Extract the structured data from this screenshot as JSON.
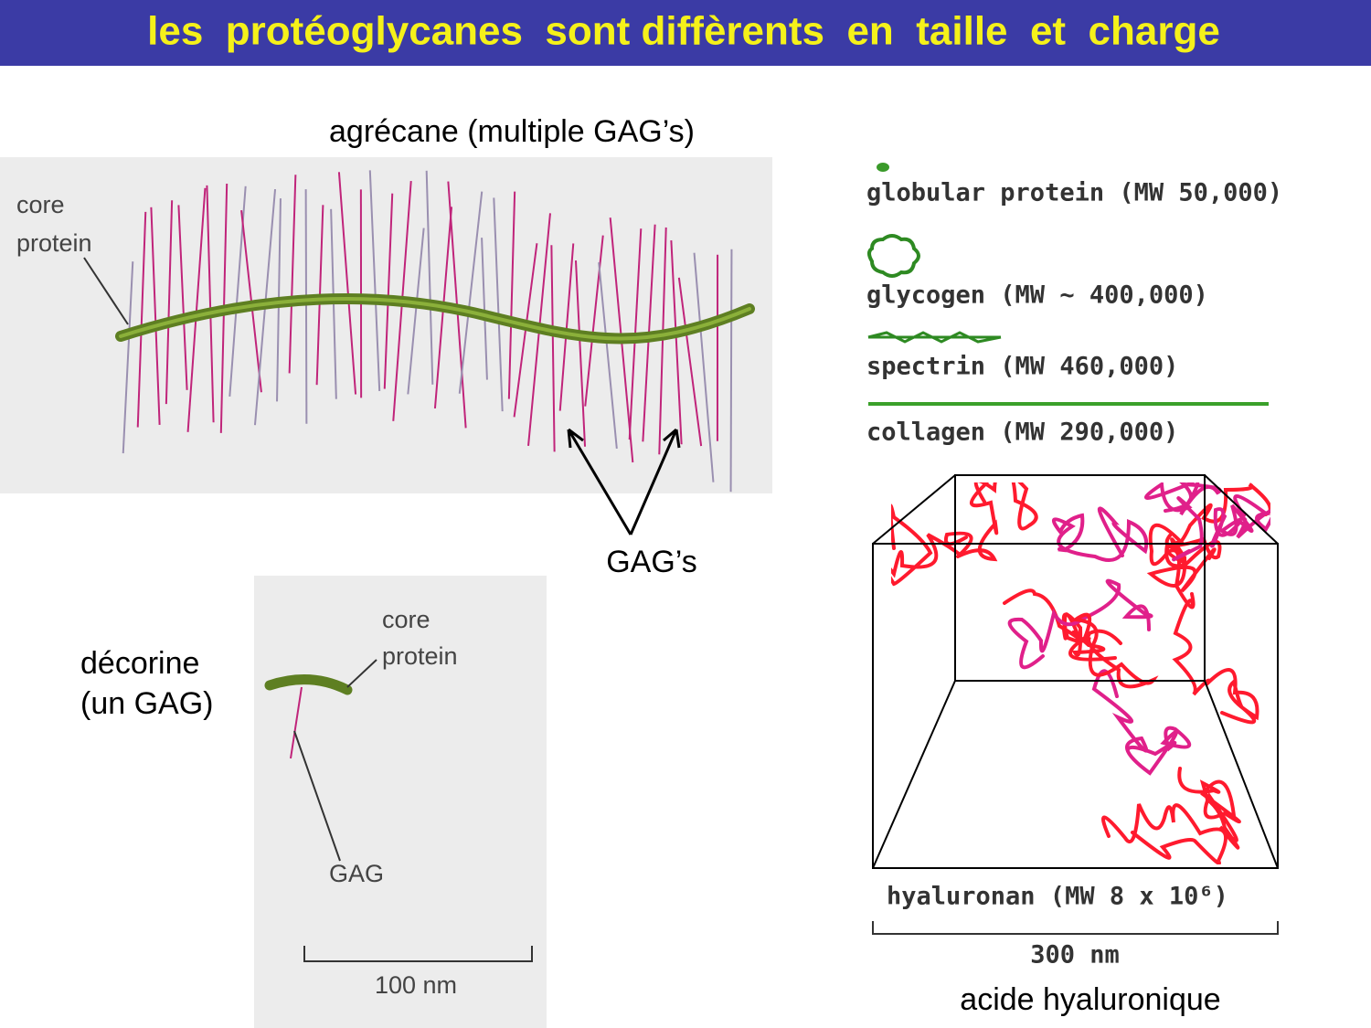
{
  "title": "les  protéoglycanes  sont diffèrents  en  taille  et  charge",
  "aggrecan": {
    "caption": "agrécane (multiple GAG’s)",
    "core_label": [
      "core",
      "protein"
    ],
    "gag_pointer": "GAG’s"
  },
  "decorin": {
    "caption": [
      "décorine",
      "(un GAG)"
    ],
    "core_label": [
      "core",
      "protein"
    ],
    "gag_label": "GAG",
    "scale": "100 nm"
  },
  "sizes": {
    "items": [
      "globular protein (MW 50,000)",
      "glycogen (MW ~ 400,000)",
      "spectrin (MW 460,000)",
      "collagen (MW 290,000)"
    ],
    "hyaluronan": "hyaluronan (MW 8 x 10⁶)",
    "scale": "300 nm",
    "caption": "acide hyaluronique"
  }
}
